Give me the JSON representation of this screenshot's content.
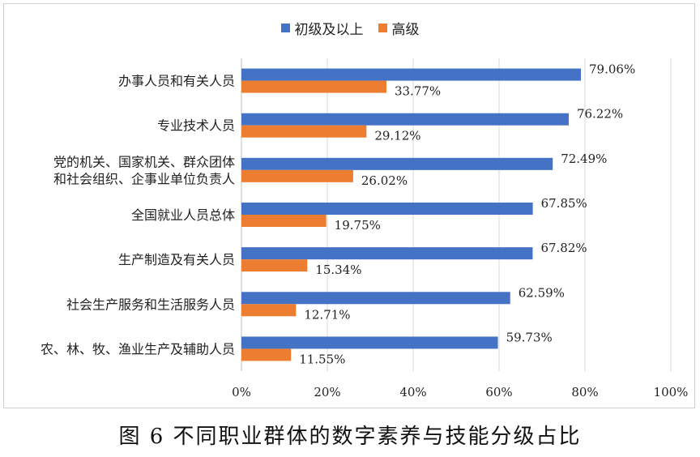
{
  "caption": "图 6  不同职业群体的数字素养与技能分级占比",
  "chart_data": {
    "type": "bar",
    "orientation": "horizontal",
    "categories": [
      [
        "办事人员和有关人员"
      ],
      [
        "专业技术人员"
      ],
      [
        "党的机关、国家机关、群众团体",
        "和社会组织、企事业单位负责人"
      ],
      [
        "全国就业人员总体"
      ],
      [
        "生产制造及有关人员"
      ],
      [
        "社会生产服务和生活服务人员"
      ],
      [
        "农、林、牧、渔业生产及辅助人员"
      ]
    ],
    "series": [
      {
        "name": "初级及以上",
        "color": "#4472c4",
        "values": [
          79.06,
          76.22,
          72.49,
          67.85,
          67.82,
          62.59,
          59.73
        ],
        "labels": [
          "79.06%",
          "76.22%",
          "72.49%",
          "67.85%",
          "67.82%",
          "62.59%",
          "59.73%"
        ]
      },
      {
        "name": "高级",
        "color": "#ed7d31",
        "values": [
          33.77,
          29.12,
          26.02,
          19.75,
          15.34,
          12.71,
          11.55
        ],
        "labels": [
          "33.77%",
          "29.12%",
          "26.02%",
          "19.75%",
          "15.34%",
          "12.71%",
          "11.55%"
        ]
      }
    ],
    "xlim": [
      0,
      100
    ],
    "ticks": [
      0,
      20,
      40,
      60,
      80,
      100
    ],
    "tick_labels": [
      "0%",
      "20%",
      "40%",
      "60%",
      "80%",
      "100%"
    ],
    "grid": true,
    "legend": "top-center"
  }
}
